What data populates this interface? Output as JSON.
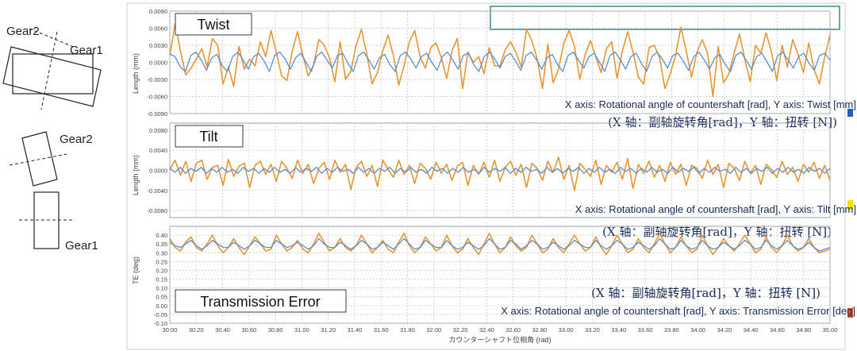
{
  "left_diagram": {
    "twist_gear_top": "Gear2",
    "twist_gear_bottom": "Gear1",
    "tilt_gear_top": "Gear2",
    "tilt_gear_bottom": "Gear1"
  },
  "colors": {
    "series_orange": "#E8952E",
    "series_blue": "#5B8FD1",
    "frame": "#9AA0A6",
    "grid": "#BFC4C9",
    "annotation_text": "#1A2A5A",
    "legend_box_border": "#3C8C8C",
    "edge_blue": "#1F5FBF",
    "edge_yellow": "#F2E200",
    "edge_red": "#E05020"
  },
  "chart_data": [
    {
      "type": "line",
      "title": "Twist",
      "ylabel": "Length (mm)",
      "ylim": [
        -0.009,
        0.009
      ],
      "yticks": [
        "0.0090",
        "0.0060",
        "0.0030",
        "0.0000",
        "-0.0030",
        "-0.0060",
        "-0.0090"
      ],
      "grid": true,
      "xlim": [
        30.0,
        35.0
      ],
      "series": [
        {
          "color": "orange",
          "values": [
            0.0012,
            0.0068,
            0.002,
            -0.0022,
            -0.001,
            0.0006,
            0.0024,
            -0.0008,
            0.0042,
            0.003,
            -0.0038,
            -0.0008,
            -0.0042,
            0.0028,
            -0.0012,
            0.0006,
            -0.0006,
            0.0036,
            0.001,
            0.0056,
            0.0018,
            -0.0024,
            -0.0032,
            0.002,
            0.0054,
            0.0012,
            -0.0024,
            -0.0004,
            0.004,
            0.003,
            0.0008,
            -0.0034,
            0.0036,
            -0.003,
            -0.0016,
            0.003,
            0.0058,
            0.0014,
            -0.0038,
            -0.0018,
            0.002,
            0.0048,
            0.0012,
            -0.004,
            -0.0006,
            0.0036,
            0.0056,
            0.001,
            -0.001,
            0.0026,
            0.0034,
            0.0008,
            -0.0028,
            0.002,
            0.0042,
            -0.0046,
            0.0018,
            0.0,
            0.001,
            -0.002,
            0.0026,
            -0.0006,
            -0.0006,
            0.0022,
            0.0036,
            0.0018,
            -0.0008,
            0.0058,
            0.0038,
            0.0006,
            -0.0046,
            0.0032,
            -0.0036,
            -0.0012,
            0.0034,
            0.0056,
            0.0028,
            -0.003,
            0.0014,
            0.0038,
            0.001,
            -0.0018,
            0.0024,
            0.0036,
            -0.0028,
            0.002,
            0.0054,
            0.0018,
            -0.0026,
            -0.0038,
            0.0026,
            0.003,
            0.0008,
            -0.0046,
            -0.002,
            0.0012,
            0.0062,
            0.002,
            -0.0026,
            0.0018,
            0.004,
            0.0016,
            -0.006,
            0.0028,
            -0.0036,
            -0.002,
            0.0016,
            0.005,
            0.0006,
            -0.0034,
            0.003,
            0.0016,
            0.0052,
            0.0018,
            -0.0032,
            0.003,
            -0.0008,
            0.004,
            0.0014,
            -0.0018,
            0.0034,
            -0.0012,
            -0.0038,
            0.001,
            0.0048
          ]
        },
        {
          "color": "blue",
          "values": [
            0.0015,
            0.001,
            -0.0008,
            -0.0016,
            0.0012,
            0.0018,
            0.0004,
            -0.0014,
            0.0008,
            0.0014,
            -0.0006,
            -0.0016,
            0.001,
            0.0018,
            0.0004,
            -0.0012,
            0.001,
            0.0016,
            0.0002,
            -0.0016,
            0.0012,
            0.0018,
            0.0006,
            -0.0012,
            0.0008,
            0.0016,
            0.0,
            -0.0016,
            0.001,
            0.0018,
            0.0004,
            -0.001,
            0.0012,
            0.0016,
            -0.0002,
            -0.0016,
            0.0012,
            0.0018,
            0.0004,
            -0.0012,
            0.0008,
            0.0014,
            -0.0004,
            -0.0016,
            0.0012,
            0.0018,
            0.0006,
            -0.001,
            0.001,
            0.0016,
            0.0,
            -0.0014,
            0.001,
            0.0018,
            0.0004,
            -0.0012,
            0.0012,
            0.0016,
            -0.0004,
            -0.0016,
            0.001,
            0.0018,
            0.0006,
            -0.001,
            0.001,
            0.0016,
            0.0002,
            -0.0014,
            0.0012,
            0.0018,
            0.0004,
            -0.0012,
            0.0008,
            0.0014,
            -0.0004,
            -0.0016,
            0.0012,
            0.0018,
            0.0004,
            -0.001,
            0.001,
            0.0016,
            0.0,
            -0.0016,
            0.0012,
            0.0018,
            0.0004,
            -0.0012,
            0.001,
            0.0016,
            -0.0002,
            -0.0016,
            0.001,
            0.0018,
            0.0006,
            -0.001,
            0.0012,
            0.0016,
            0.0002,
            -0.0014,
            0.001,
            0.0018,
            0.0004,
            -0.0012,
            0.0008,
            0.0014,
            -0.0004,
            -0.0016,
            0.0012,
            0.0018,
            0.0004,
            -0.0012,
            0.001,
            0.0016,
            0.0,
            -0.0016,
            0.0012,
            0.0018,
            0.0004,
            -0.001,
            0.001,
            0.0016,
            -0.0002,
            -0.0014,
            0.0012,
            0.0016,
            0.0004
          ]
        }
      ],
      "annotation_en": "X axis: Rotational angle of countershaft [rad],  Y axis: Twist [mm]",
      "annotation_cn": "(X 轴：副轴旋转角[rad]，Y 轴：扭转 [N])"
    },
    {
      "type": "line",
      "title": "Tilt",
      "ylabel": "Length (mm)",
      "ylim": [
        -0.0094,
        0.0094
      ],
      "yticks": [
        "0.0080",
        "0.0040",
        "0.0000",
        "-0.0040",
        "-0.0080"
      ],
      "grid": true,
      "xlim": [
        30.0,
        35.0
      ],
      "series": [
        {
          "color": "orange",
          "values": [
            0.0002,
            0.002,
            -0.001,
            0.0018,
            -0.0022,
            0.0014,
            0.002,
            -0.0018,
            0.0006,
            0.001,
            -0.003,
            0.0022,
            -0.0012,
            0.0008,
            0.0014,
            -0.0034,
            0.001,
            0.0018,
            -0.0008,
            0.0012,
            -0.0022,
            0.0018,
            0.0004,
            -0.0016,
            0.002,
            -0.0006,
            0.0012,
            -0.0026,
            0.0004,
            0.0016,
            -0.0018,
            0.002,
            -0.0004,
            0.0012,
            -0.0038,
            0.0006,
            0.0018,
            -0.0012,
            0.001,
            -0.0032,
            0.002,
            0.0002,
            -0.0014,
            0.002,
            -0.0008,
            0.001,
            -0.0026,
            0.0014,
            0.0004,
            -0.0018,
            0.0016,
            -0.0006,
            0.0012,
            -0.002,
            0.0008,
            0.0016,
            -0.003,
            0.001,
            -0.0008,
            0.0016,
            -0.0014,
            0.002,
            -0.0022,
            0.0006,
            0.0018,
            -0.001,
            0.0012,
            -0.0034,
            0.0014,
            0.0004,
            -0.002,
            0.0018,
            -0.0004,
            0.0026,
            -0.0018,
            0.001,
            -0.004,
            0.0014,
            0.0002,
            -0.0012,
            0.002,
            -0.0028,
            0.001,
            -0.0004,
            0.0016,
            -0.0018,
            0.0024,
            -0.0036,
            0.0012,
            -0.0006,
            0.0018,
            -0.0014,
            0.001,
            -0.0022,
            0.0016,
            -0.0008,
            0.0012,
            -0.003,
            0.001,
            0.0004,
            -0.0016,
            0.002,
            -0.0008,
            0.0012,
            -0.0034,
            0.0014,
            0.0004,
            -0.002,
            0.0018,
            -0.0006,
            0.001,
            -0.0028,
            0.0012,
            0.0002,
            -0.0014,
            0.0018,
            -0.0008,
            0.0006,
            -0.0022,
            0.0012,
            -0.0004,
            0.0016,
            -0.0016,
            0.001,
            -0.002
          ]
        },
        {
          "color": "blue",
          "values": [
            0.0004,
            -0.0004,
            0.0006,
            -0.0006,
            0.0004,
            -0.0002,
            0.0006,
            -0.0006,
            0.0004,
            -0.0004,
            0.0006,
            -0.0004,
            0.0002,
            -0.0006,
            0.0006,
            -0.0002,
            0.0004,
            -0.0006,
            0.0004,
            -0.0004,
            0.0006,
            -0.0004,
            0.0002,
            -0.0006,
            0.0006,
            -0.0004,
            0.0004,
            -0.0002,
            0.0006,
            -0.0006,
            0.0004,
            -0.0004,
            0.0006,
            -0.0002,
            0.0002,
            -0.0006,
            0.0006,
            -0.0004,
            0.0004,
            -0.0006,
            0.0004,
            -0.0002,
            0.0006,
            -0.0006,
            0.0004,
            -0.0004,
            0.0006,
            -0.0004,
            0.0002,
            -0.0006,
            0.0006,
            -0.0002,
            0.0004,
            -0.0006,
            0.0004,
            -0.0004,
            0.0006,
            -0.0004,
            0.0002,
            -0.0006,
            0.0006,
            -0.0004,
            0.0004,
            -0.0002,
            0.0006,
            -0.0006,
            0.0004,
            -0.0004,
            0.0006,
            -0.0002,
            0.0002,
            -0.0006,
            0.0006,
            -0.0004,
            0.0004,
            -0.0006,
            0.0004,
            -0.0002,
            0.0006,
            -0.0006,
            0.0004,
            -0.0004,
            0.0006,
            -0.0004,
            0.0002,
            -0.0006,
            0.0006,
            -0.0002,
            0.0004,
            -0.0006,
            0.0004,
            -0.0004,
            0.0006,
            -0.0004,
            0.0002,
            -0.0006,
            0.0006,
            -0.0004,
            0.0004,
            -0.0002,
            0.0006,
            -0.0006,
            0.0004,
            -0.0004,
            0.0006,
            -0.0002,
            0.0002,
            -0.0006,
            0.0006,
            -0.0004,
            0.0004,
            -0.0006,
            0.0004,
            -0.0002,
            0.0006,
            -0.0006,
            0.0004,
            -0.0004,
            0.0006,
            -0.0004,
            0.0002,
            -0.0006,
            0.0006,
            -0.0002,
            0.0004,
            -0.0006,
            0.0004
          ]
        }
      ],
      "annotation_en": "X axis: Rotational angle of countershaft [rad],  Y axis: Tilt [mm]",
      "annotation_cn": "(X 轴：副轴旋转角[rad]，Y 轴：扭转 [N])"
    },
    {
      "type": "line",
      "title": "Transmission Error",
      "ylabel": "TE (deg)",
      "ylim": [
        -0.1,
        0.45
      ],
      "yticks": [
        "0.40",
        "0.35",
        "0.30",
        "0.25",
        "0.20",
        "0.15",
        "0.10",
        "0.05",
        "0.00",
        "-0.05",
        "-0.10"
      ],
      "grid": true,
      "xlim": [
        30.0,
        35.0
      ],
      "xticks": [
        "30.00",
        "30.20",
        "30.40",
        "30.60",
        "30.80",
        "31.00",
        "31.20",
        "31.40",
        "31.60",
        "31.80",
        "32.00",
        "32.20",
        "32.40",
        "32.60",
        "32.80",
        "33.00",
        "33.20",
        "33.40",
        "33.60",
        "33.80",
        "34.00",
        "34.20",
        "34.40",
        "34.60",
        "34.80",
        "35.00"
      ],
      "xlabel": "カウンターシャフト位相角 (rad)",
      "series": [
        {
          "color": "orange",
          "values": [
            0.38,
            0.33,
            0.31,
            0.36,
            0.39,
            0.33,
            0.31,
            0.35,
            0.4,
            0.34,
            0.3,
            0.33,
            0.38,
            0.33,
            0.29,
            0.34,
            0.39,
            0.35,
            0.31,
            0.32,
            0.4,
            0.35,
            0.31,
            0.33,
            0.37,
            0.32,
            0.3,
            0.35,
            0.41,
            0.36,
            0.31,
            0.33,
            0.38,
            0.33,
            0.31,
            0.34,
            0.4,
            0.35,
            0.3,
            0.33,
            0.37,
            0.32,
            0.3,
            0.36,
            0.41,
            0.34,
            0.3,
            0.33,
            0.39,
            0.35,
            0.31,
            0.33,
            0.4,
            0.34,
            0.3,
            0.32,
            0.38,
            0.33,
            0.29,
            0.35,
            0.41,
            0.35,
            0.3,
            0.33,
            0.39,
            0.34,
            0.31,
            0.33,
            0.4,
            0.35,
            0.3,
            0.32,
            0.38,
            0.33,
            0.3,
            0.35,
            0.4,
            0.35,
            0.31,
            0.33,
            0.39,
            0.33,
            0.29,
            0.34,
            0.4,
            0.35,
            0.3,
            0.32,
            0.38,
            0.33,
            0.3,
            0.35,
            0.41,
            0.35,
            0.3,
            0.33,
            0.39,
            0.34,
            0.3,
            0.32,
            0.4,
            0.34,
            0.29,
            0.33,
            0.38,
            0.34,
            0.31,
            0.35,
            0.4,
            0.35,
            0.3,
            0.32,
            0.39,
            0.33,
            0.3,
            0.34,
            0.4,
            0.34,
            0.31,
            0.33,
            0.38,
            0.33,
            0.3,
            0.31,
            0.32
          ]
        },
        {
          "color": "blue",
          "values": [
            0.36,
            0.34,
            0.33,
            0.35,
            0.37,
            0.34,
            0.32,
            0.34,
            0.37,
            0.35,
            0.33,
            0.33,
            0.36,
            0.34,
            0.32,
            0.34,
            0.37,
            0.35,
            0.33,
            0.33,
            0.37,
            0.35,
            0.33,
            0.34,
            0.36,
            0.34,
            0.32,
            0.34,
            0.38,
            0.35,
            0.33,
            0.33,
            0.36,
            0.34,
            0.32,
            0.34,
            0.37,
            0.35,
            0.32,
            0.33,
            0.36,
            0.34,
            0.32,
            0.35,
            0.38,
            0.35,
            0.32,
            0.33,
            0.37,
            0.35,
            0.33,
            0.33,
            0.37,
            0.34,
            0.32,
            0.33,
            0.36,
            0.34,
            0.32,
            0.34,
            0.38,
            0.35,
            0.32,
            0.33,
            0.37,
            0.35,
            0.32,
            0.34,
            0.37,
            0.35,
            0.32,
            0.33,
            0.36,
            0.34,
            0.32,
            0.34,
            0.37,
            0.35,
            0.33,
            0.33,
            0.37,
            0.34,
            0.32,
            0.34,
            0.37,
            0.35,
            0.32,
            0.33,
            0.36,
            0.34,
            0.32,
            0.34,
            0.38,
            0.35,
            0.32,
            0.33,
            0.37,
            0.34,
            0.32,
            0.33,
            0.37,
            0.34,
            0.32,
            0.33,
            0.36,
            0.34,
            0.32,
            0.34,
            0.37,
            0.35,
            0.32,
            0.33,
            0.37,
            0.34,
            0.32,
            0.34,
            0.37,
            0.34,
            0.32,
            0.33,
            0.36,
            0.33,
            0.31,
            0.32,
            0.33
          ]
        }
      ],
      "annotation_cn": "(X 轴：副轴旋转角[rad]，Y 轴：扭转 [N])",
      "annotation_en": "X axis: Rotational angle of countershaft [rad],  Y axis: Transmission Error [deg]"
    }
  ]
}
